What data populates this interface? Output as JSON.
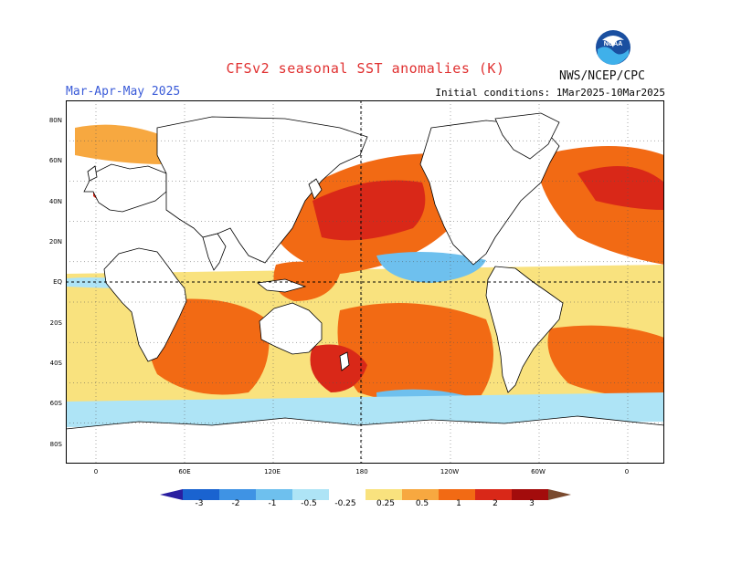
{
  "header": {
    "title": "CFSv2 seasonal SST anomalies (K)",
    "season": "Mar-Apr-May 2025",
    "initial_conditions": "Initial conditions: 1Mar2025-10Mar2025",
    "agency": "NWS/NCEP/CPC",
    "logo_text": "NOAA"
  },
  "map": {
    "lat_labels": [
      "80N",
      "60N",
      "40N",
      "20N",
      "EQ",
      "20S",
      "40S",
      "60S",
      "80S"
    ],
    "lon_labels": [
      "0",
      "60E",
      "120E",
      "180",
      "120W",
      "60W",
      "0"
    ],
    "colors": {
      "ocean": "#ffffff",
      "warm_025": "#f9e27e",
      "warm_05": "#f7a840",
      "warm_1": "#f26a14",
      "warm_2": "#d92818",
      "warm_3": "#a30c0c",
      "cool_025": "#aee4f6",
      "cool_05": "#6ec0ee",
      "cool_1": "#3f93e4",
      "cool_2": "#1a63d0"
    }
  },
  "colorbar": {
    "labels": [
      "-3",
      "-2",
      "-1",
      "-0.5",
      "-0.25",
      "0.25",
      "0.5",
      "1",
      "2",
      "3"
    ],
    "colors": [
      "#2a1ea0",
      "#1a63d0",
      "#3f93e4",
      "#6ec0ee",
      "#aee4f6",
      "#ffffff",
      "#f9e27e",
      "#f7a840",
      "#f26a14",
      "#d92818",
      "#a30c0c",
      "#7a4a2e"
    ]
  }
}
